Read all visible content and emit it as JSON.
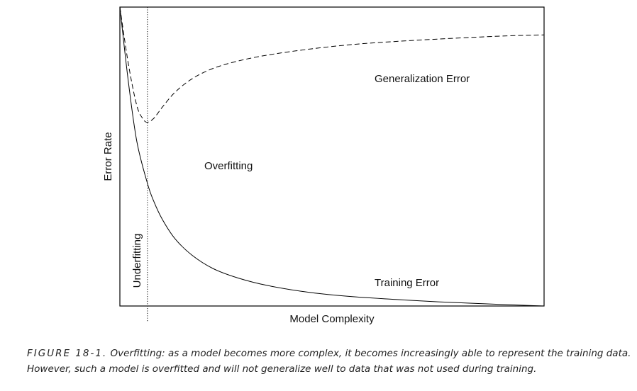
{
  "chart_data": {
    "type": "line",
    "xlabel": "Model Complexity",
    "ylabel": "Error Rate",
    "xlim": [
      0,
      100
    ],
    "ylim": [
      0,
      100
    ],
    "grid": false,
    "series": [
      {
        "name": "Generalization Error",
        "style": "dashed",
        "x": [
          0,
          2,
          4,
          5.5,
          6.5,
          8,
          10,
          13,
          17,
          22,
          28,
          35,
          45,
          55,
          65,
          75,
          85,
          92,
          100
        ],
        "y": [
          100,
          81,
          67,
          62.5,
          61.5,
          62.8,
          66.5,
          71.5,
          76,
          79.5,
          82,
          84,
          86,
          87.5,
          88.5,
          89.3,
          90,
          90.4,
          90.7
        ]
      },
      {
        "name": "Training Error",
        "style": "solid",
        "x": [
          0,
          2,
          4,
          6.5,
          8,
          10,
          13,
          17,
          22,
          28,
          35,
          45,
          55,
          65,
          75,
          85,
          92,
          100
        ],
        "y": [
          100,
          75,
          55,
          41,
          35,
          29,
          22.5,
          17,
          12.5,
          9.3,
          6.8,
          4.5,
          3.1,
          2.2,
          1.4,
          0.8,
          0.4,
          0
        ]
      }
    ],
    "divider": {
      "x": 6.5,
      "style": "dotted"
    },
    "annotations": [
      {
        "id": "generalization-error-label",
        "text": "Generalization Error"
      },
      {
        "id": "overfitting-label",
        "text": "Overfitting"
      },
      {
        "id": "underfitting-label",
        "text": "Underfitting"
      },
      {
        "id": "training-error-label",
        "text": "Training Error"
      }
    ]
  },
  "caption": {
    "label": "FIGURE 18-1.",
    "line1": "Overfitting: as a model becomes more complex, it becomes increasingly able to represent the training data.",
    "line2": "However, such a model is overfitted and will not generalize well to data that was not used during training."
  }
}
